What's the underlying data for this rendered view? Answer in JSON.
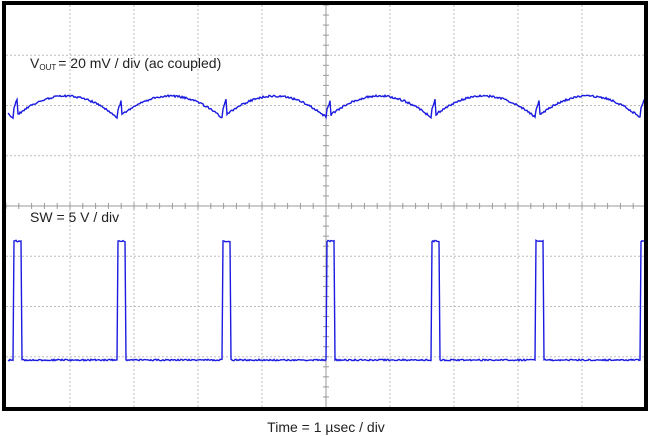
{
  "channel_labels": {
    "vout_symbol": "V",
    "vout_subscript": "OUT",
    "vout_scale": "= 20 mV / div (ac coupled)",
    "sw_scale": "SW = 5 V / div"
  },
  "footer": {
    "time_scale": "Time = 1 µsec / div"
  }
}
